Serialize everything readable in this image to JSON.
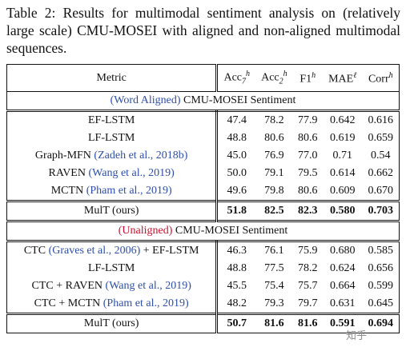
{
  "caption": {
    "label": "Table 2:",
    "text": "Results for multimodal sentiment analysis on (relatively large scale) CMU-MOSEI with aligned and non-aligned multimodal sequences."
  },
  "table": {
    "header": {
      "metric": "Metric",
      "cols": [
        {
          "base": "Acc",
          "sub": "7",
          "sup": "h"
        },
        {
          "base": "Acc",
          "sub": "2",
          "sup": "h"
        },
        {
          "base": "F1",
          "sub": "",
          "sup": "h"
        },
        {
          "base": "MAE",
          "sub": "",
          "sup": "ℓ"
        },
        {
          "base": "Corr",
          "sub": "",
          "sup": "h"
        }
      ]
    },
    "aligned": {
      "title_colored": "(Word Aligned)",
      "title_rest": " CMU-MOSEI Sentiment",
      "rows": [
        {
          "name": "EF-LSTM",
          "cite": "",
          "values": [
            "47.4",
            "78.2",
            "77.9",
            "0.642",
            "0.616"
          ]
        },
        {
          "name": "LF-LSTM",
          "cite": "",
          "values": [
            "48.8",
            "80.6",
            "80.6",
            "0.619",
            "0.659"
          ]
        },
        {
          "name": "Graph-MFN ",
          "cite": "(Zadeh et al., 2018b)",
          "values": [
            "45.0",
            "76.9",
            "77.0",
            "0.71",
            "0.54"
          ]
        },
        {
          "name": "RAVEN ",
          "cite": "(Wang et al., 2019)",
          "values": [
            "50.0",
            "79.1",
            "79.5",
            "0.614",
            "0.662"
          ]
        },
        {
          "name": "MCTN ",
          "cite": "(Pham et al., 2019)",
          "values": [
            "49.6",
            "79.8",
            "80.6",
            "0.609",
            "0.670"
          ]
        }
      ],
      "mult": {
        "name": "MulT (ours)",
        "values": [
          "51.8",
          "82.5",
          "82.3",
          "0.580",
          "0.703"
        ]
      }
    },
    "unaligned": {
      "title_colored": "(Unaligned)",
      "title_rest": " CMU-MOSEI Sentiment",
      "rows": [
        {
          "pre": "CTC ",
          "cite": "(Graves et al., 2006)",
          "post": " + EF-LSTM",
          "values": [
            "46.3",
            "76.1",
            "75.9",
            "0.680",
            "0.585"
          ]
        },
        {
          "pre": "LF-LSTM",
          "cite": "",
          "post": "",
          "values": [
            "48.8",
            "77.5",
            "78.2",
            "0.624",
            "0.656"
          ]
        },
        {
          "pre": "CTC + RAVEN ",
          "cite": "(Wang et al., 2019)",
          "post": "",
          "values": [
            "45.5",
            "75.4",
            "75.7",
            "0.664",
            "0.599"
          ]
        },
        {
          "pre": "CTC + MCTN ",
          "cite": "(Pham et al., 2019)",
          "post": "",
          "values": [
            "48.2",
            "79.3",
            "79.7",
            "0.631",
            "0.645"
          ]
        }
      ],
      "mult": {
        "name": "MulT (ours)",
        "values": [
          "50.7",
          "81.6",
          "81.6",
          "0.591",
          "0.694"
        ]
      }
    }
  },
  "watermark": "知乎"
}
